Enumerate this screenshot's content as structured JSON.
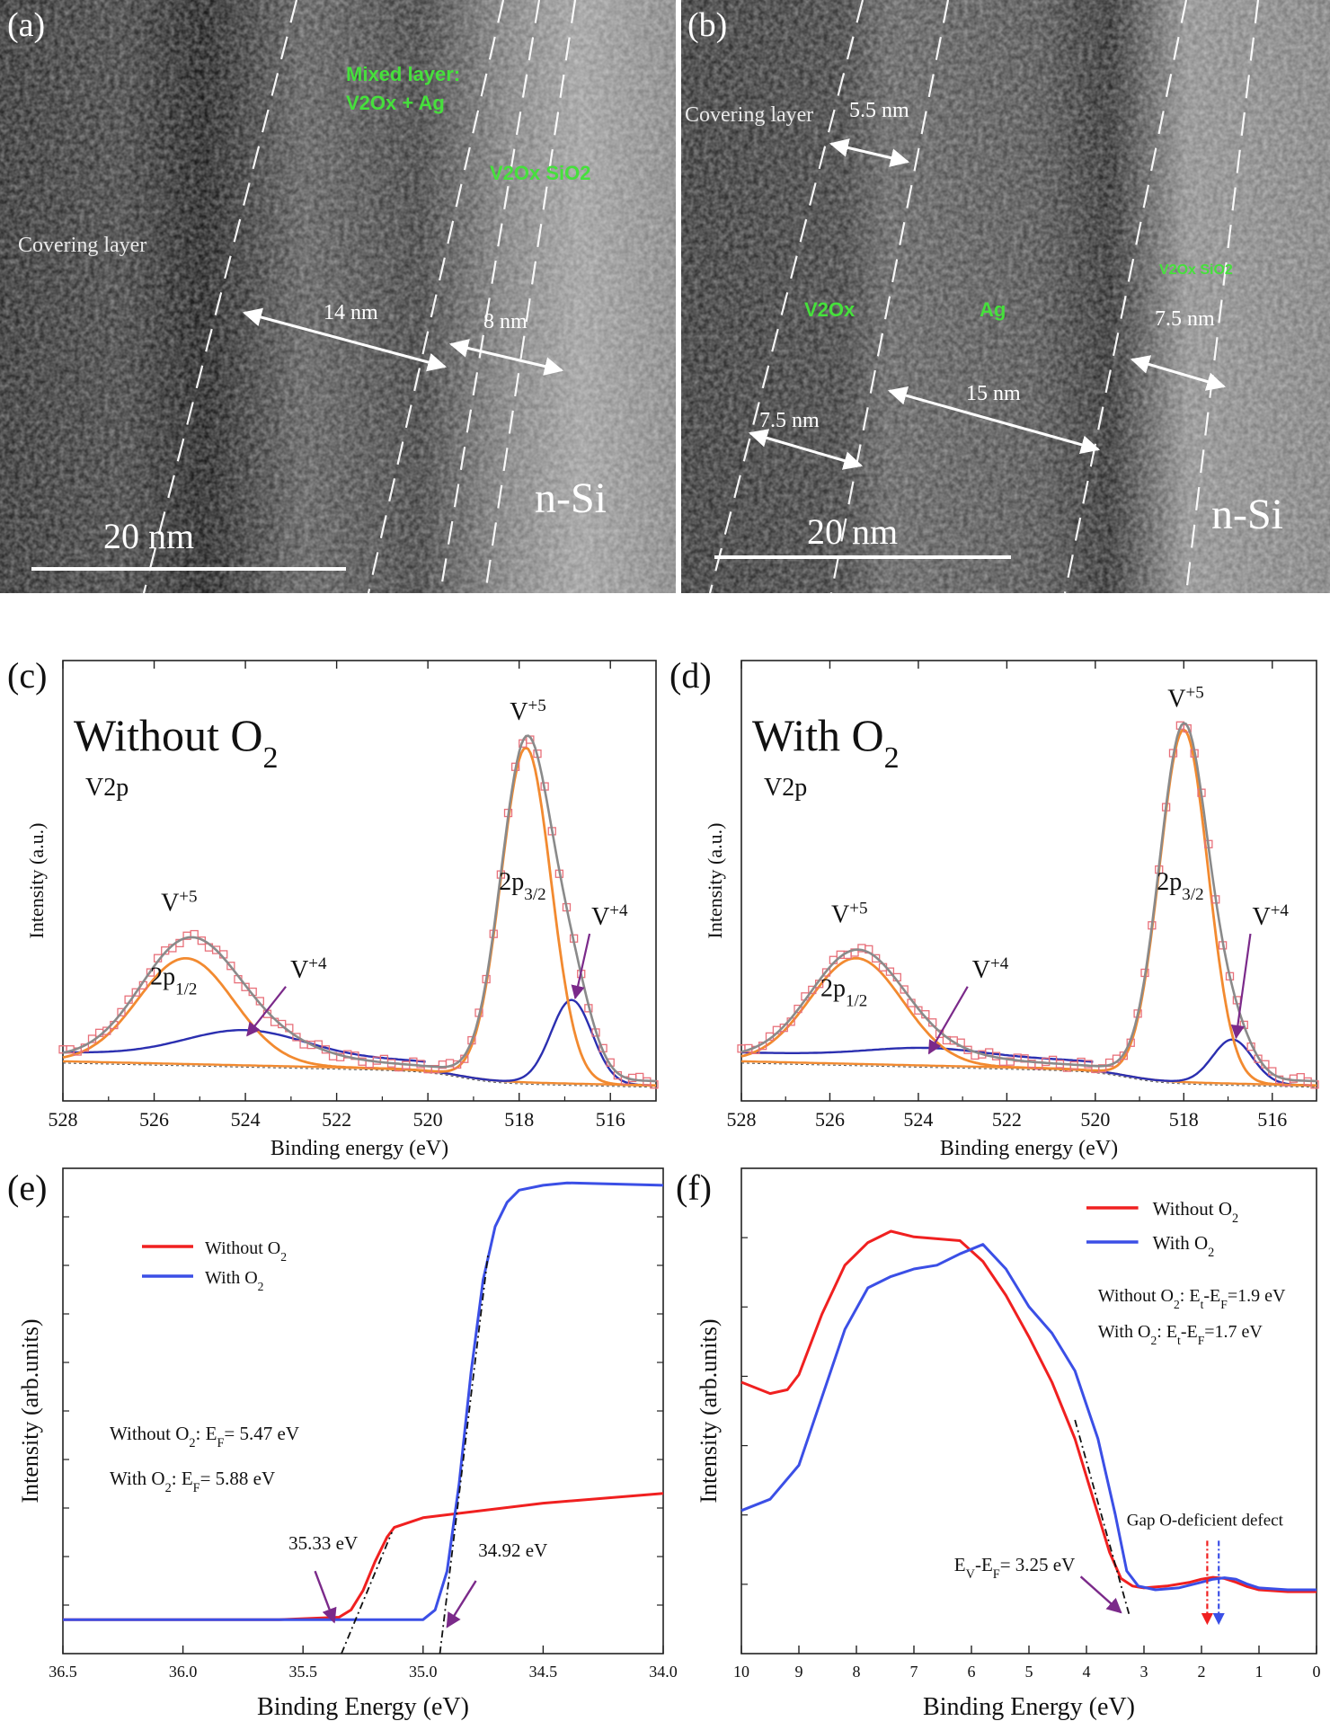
{
  "tem_a": {
    "panel_label": "(a)",
    "labels": {
      "mixed_layer_line1": "Mixed layer:",
      "mixed_layer_line2": "V2Ox + Ag",
      "v2ox_sio2": "V2Ox SiO2",
      "covering": "Covering layer",
      "dim1": "14 nm",
      "dim2": "8 nm",
      "nsi": "n-Si",
      "scale": "20 nm"
    }
  },
  "tem_b": {
    "panel_label": "(b)",
    "labels": {
      "covering": "Covering layer",
      "dim_top": "5.5 nm",
      "v2ox": "V2Ox",
      "ag": "Ag",
      "v2ox_sio2": "V2Ox SiO2",
      "dim_right": "7.5 nm",
      "dim_mid": "15 nm",
      "dim_left": "7.5 nm",
      "nsi": "n-Si",
      "scale": "20 nm"
    }
  },
  "colors": {
    "tem_green": "#46e03c",
    "points": "#e8707a",
    "fit_gray": "#8a8a8a",
    "comp_orange": "#f28a30",
    "comp_blue": "#2b2fb0",
    "red_line": "#f02020",
    "blue_line": "#3b4fe6",
    "arrow_purple": "#7b2a8a"
  },
  "chart_data": [
    {
      "panel": "(c)",
      "type": "line",
      "title": "Without O2",
      "subtitle": "V2p",
      "xlabel": "Binding energy (eV)",
      "ylabel": "Intensity (a.u.)",
      "xlim": [
        528,
        515
      ],
      "x_ticks": [
        "528",
        "526",
        "524",
        "522",
        "520",
        "518",
        "516"
      ],
      "ylim": [
        0,
        1
      ],
      "annotations": {
        "v5_left": "V+5",
        "v4_left": "V+4",
        "p12": "2p1/2",
        "v5_right": "V+5",
        "v4_right": "V+4",
        "p32": "2p3/2"
      },
      "peaks": {
        "v5_1": {
          "center": 525.3,
          "height": 0.24
        },
        "v4_1": {
          "center": 524.0,
          "height": 0.06
        },
        "v5_3": {
          "center": 517.85,
          "height": 0.76
        },
        "v4_3": {
          "center": 516.85,
          "height": 0.19
        }
      },
      "series": [
        {
          "name": "experimental"
        },
        {
          "name": "fit"
        },
        {
          "name": "V+5 components"
        },
        {
          "name": "V+4 components"
        },
        {
          "name": "background"
        }
      ]
    },
    {
      "panel": "(d)",
      "type": "line",
      "title": "With O2",
      "subtitle": "V2p",
      "xlabel": "Binding energy (eV)",
      "ylabel": "Intensity (a.u.)",
      "xlim": [
        528,
        515
      ],
      "x_ticks": [
        "528",
        "526",
        "524",
        "522",
        "520",
        "518",
        "516"
      ],
      "ylim": [
        0,
        1
      ],
      "annotations": {
        "v5_left": "V+5",
        "v4_left": "V+4",
        "p12": "2p1/2",
        "v5_right": "V+5",
        "v4_right": "V+4",
        "p32": "2p3/2"
      },
      "peaks": {
        "v5_1": {
          "center": 525.4,
          "height": 0.24
        },
        "v4_1": {
          "center": 523.8,
          "height": 0.02
        },
        "v5_3": {
          "center": 518.0,
          "height": 0.8
        },
        "v4_3": {
          "center": 516.9,
          "height": 0.1
        }
      },
      "series": [
        {
          "name": "experimental"
        },
        {
          "name": "fit"
        },
        {
          "name": "V+5 components"
        },
        {
          "name": "V+4 components"
        },
        {
          "name": "background"
        }
      ]
    },
    {
      "panel": "(e)",
      "type": "line",
      "xlabel": "Binding Energy (eV)",
      "ylabel": "Intensity (arb.units)",
      "xlim": [
        36.5,
        34.0
      ],
      "x_ticks": [
        "36.5",
        "36.0",
        "35.5",
        "35.0",
        "34.5",
        "34.0"
      ],
      "legend": "upper-left",
      "legend_entries": [
        "Without O2",
        "With O2"
      ],
      "text_lines": [
        "Without O2: EF= 5.47 eV",
        "With O2: EF= 5.88 eV"
      ],
      "cutoffs": {
        "without": "35.33 eV",
        "with": "34.92 eV"
      },
      "series": [
        {
          "name": "Without O2",
          "x": [
            36.5,
            35.6,
            35.35,
            35.3,
            35.25,
            35.2,
            35.15,
            35.12,
            35.0,
            34.5,
            34.0
          ],
          "y": [
            0.07,
            0.07,
            0.075,
            0.09,
            0.13,
            0.19,
            0.24,
            0.26,
            0.28,
            0.31,
            0.33
          ]
        },
        {
          "name": "With O2",
          "x": [
            36.5,
            35.0,
            34.95,
            34.9,
            34.85,
            34.8,
            34.75,
            34.7,
            34.65,
            34.6,
            34.5,
            34.4,
            34.0
          ],
          "y": [
            0.07,
            0.07,
            0.09,
            0.17,
            0.35,
            0.58,
            0.77,
            0.88,
            0.93,
            0.955,
            0.965,
            0.97,
            0.965
          ]
        }
      ]
    },
    {
      "panel": "(f)",
      "type": "line",
      "xlabel": "Binding Energy (eV)",
      "ylabel": "Intensity (arb.units)",
      "xlim": [
        10,
        0
      ],
      "x_ticks": [
        "10",
        "9",
        "8",
        "7",
        "6",
        "5",
        "4",
        "3",
        "2",
        "1",
        "0"
      ],
      "legend": "upper-right",
      "legend_entries": [
        "Without O2",
        "With O2"
      ],
      "text_lines": [
        "Without O2: Et-EF=1.9 eV",
        "With O2: Et-EF=1.7 eV"
      ],
      "defect_label": "Gap O-deficient defect",
      "ev_label": "EV-EF= 3.25 eV",
      "series": [
        {
          "name": "Without O2",
          "x": [
            10,
            9.5,
            9.2,
            9.0,
            8.6,
            8.2,
            7.8,
            7.4,
            7.0,
            6.6,
            6.2,
            5.8,
            5.4,
            5.0,
            4.6,
            4.2,
            3.9,
            3.6,
            3.4,
            3.2,
            3.0,
            2.6,
            2.2,
            2.0,
            1.8,
            1.6,
            1.4,
            1.2,
            1.0,
            0.5,
            0
          ],
          "y": [
            0.6,
            0.57,
            0.58,
            0.62,
            0.78,
            0.91,
            0.97,
            1.0,
            0.985,
            0.98,
            0.975,
            0.92,
            0.83,
            0.72,
            0.6,
            0.45,
            0.3,
            0.15,
            0.08,
            0.06,
            0.055,
            0.06,
            0.07,
            0.078,
            0.083,
            0.08,
            0.07,
            0.058,
            0.05,
            0.045,
            0.045
          ]
        },
        {
          "name": "With O2",
          "x": [
            10,
            9.5,
            9.0,
            8.6,
            8.2,
            7.8,
            7.4,
            7.0,
            6.6,
            6.2,
            5.8,
            5.4,
            5.0,
            4.6,
            4.2,
            3.8,
            3.5,
            3.3,
            3.1,
            2.8,
            2.4,
            2.0,
            1.8,
            1.6,
            1.4,
            1.2,
            1.0,
            0.5,
            0
          ],
          "y": [
            0.26,
            0.29,
            0.38,
            0.56,
            0.74,
            0.85,
            0.88,
            0.9,
            0.91,
            0.94,
            0.965,
            0.9,
            0.8,
            0.73,
            0.63,
            0.45,
            0.25,
            0.1,
            0.06,
            0.05,
            0.055,
            0.07,
            0.078,
            0.082,
            0.078,
            0.065,
            0.055,
            0.05,
            0.05
          ]
        }
      ]
    }
  ]
}
